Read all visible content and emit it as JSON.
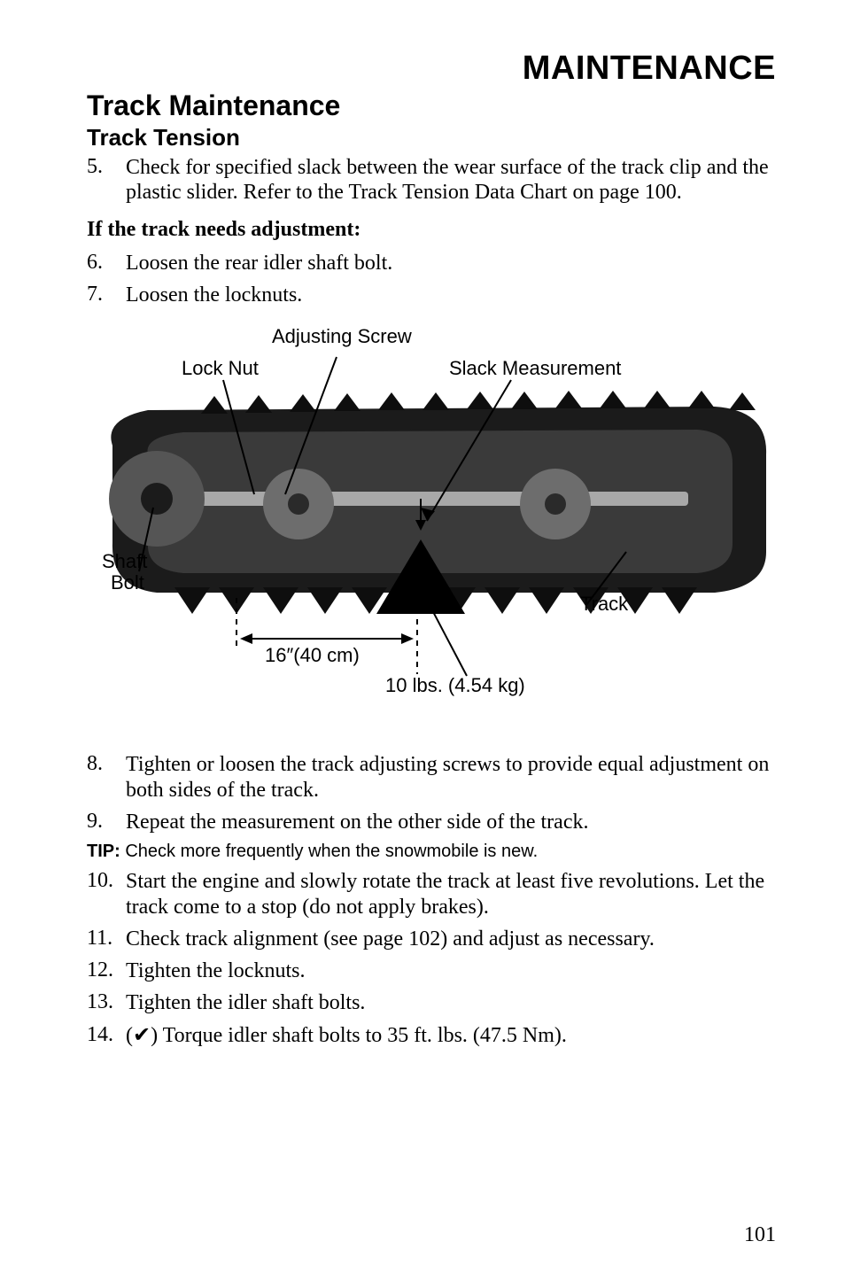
{
  "header": {
    "main": "MAINTENANCE",
    "section": "Track Maintenance",
    "subsection": "Track Tension"
  },
  "steps1": [
    {
      "n": "5.",
      "t": "Check for specified slack between the wear surface of the track clip and the plastic slider. Refer to the Track Tension Data Chart on page 100."
    }
  ],
  "ifAdjust": "If the track needs adjustment:",
  "steps2": [
    {
      "n": "6.",
      "t": "Loosen the rear idler shaft bolt."
    },
    {
      "n": "7.",
      "t": "Loosen the locknuts."
    }
  ],
  "diagram": {
    "adjScrew": "Adjusting Screw",
    "lockNut": "Lock Nut",
    "slack": "Slack Measurement",
    "shaftBolt1": "Shaft",
    "shaftBolt2": "Bolt",
    "track": "Track",
    "dist": "16″(40 cm)",
    "weight": "10 lbs. (4.54 kg)",
    "colors": {
      "trackDark": "#1b1b1b",
      "trackMid": "#4a4a4a",
      "wheel": "#6d6d6d",
      "triangle": "#000000",
      "line": "#000000"
    }
  },
  "steps3": [
    {
      "n": "8.",
      "t": "Tighten or loosen the track adjusting screws to provide equal adjustment on both sides of the track."
    },
    {
      "n": "9.",
      "t": "Repeat the measurement on the other side of the track."
    }
  ],
  "tip": {
    "label": "TIP:",
    "text": "Check more frequently when the snowmobile is new."
  },
  "steps4": [
    {
      "n": "10.",
      "t": "Start the engine and slowly rotate the track at least five revolutions. Let the track come to a stop (do not apply brakes)."
    },
    {
      "n": "11.",
      "t": "Check track alignment (see page 102) and adjust as necessary."
    },
    {
      "n": "12.",
      "t": "Tighten the locknuts."
    },
    {
      "n": "13.",
      "t": "Tighten the idler shaft bolts."
    },
    {
      "n": "14.",
      "t": "(✔) Torque idler shaft bolts to 35 ft. lbs. (47.5 Nm)."
    }
  ],
  "pageNumber": "101"
}
